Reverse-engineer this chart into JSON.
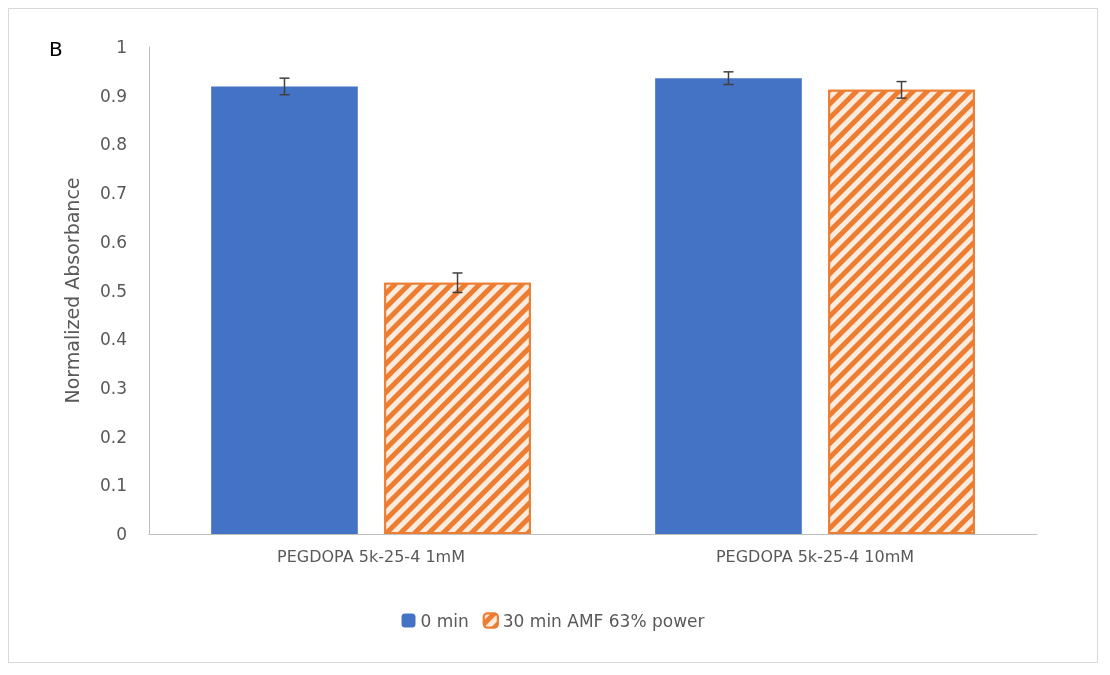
{
  "chart_data": {
    "type": "bar",
    "ylabel": "Normalized Absorbance",
    "categories": [
      "PEGDOPA 5k-25-4 1mM",
      "PEGDOPA 5k-25-4 10mM"
    ],
    "series": [
      {
        "name": "0 min",
        "color": "#4472c4",
        "values": [
          0.919,
          0.936
        ],
        "errors": [
          0.017,
          0.013
        ]
      },
      {
        "name": "30 min AMF 63% power",
        "color": "#ed7d31",
        "values": [
          0.516,
          0.912
        ],
        "errors": [
          0.02,
          0.017
        ]
      }
    ],
    "ylim": [
      0,
      1
    ],
    "yticks": [
      0,
      0.1,
      0.2,
      0.3,
      0.4,
      0.5,
      0.6,
      0.7,
      0.8,
      0.9,
      1
    ],
    "grid": false,
    "legend": "bottom",
    "annotations": [
      "B"
    ]
  }
}
